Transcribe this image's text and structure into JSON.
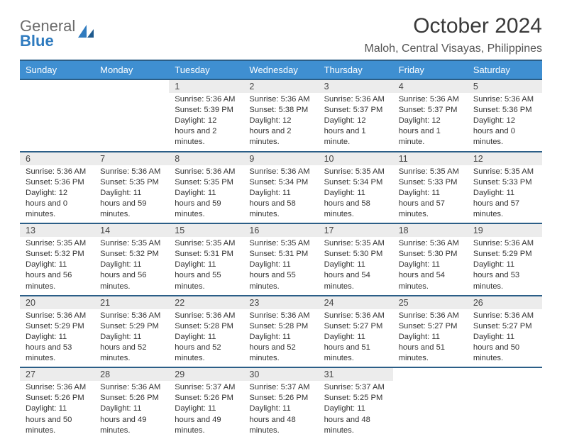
{
  "logo": {
    "word1": "General",
    "word2": "Blue"
  },
  "title": "October 2024",
  "location": "Maloh, Central Visayas, Philippines",
  "colors": {
    "header_bg": "#3f8fd1",
    "header_border": "#2b5e87",
    "daynum_bg": "#ececec",
    "logo_gray": "#6b6b6b",
    "logo_blue": "#2f7bbf"
  },
  "fonts": {
    "title_pt": 30,
    "location_pt": 16,
    "weekday_pt": 13,
    "daynum_pt": 12.5,
    "cell_pt": 11.2
  },
  "weekdays": [
    "Sunday",
    "Monday",
    "Tuesday",
    "Wednesday",
    "Thursday",
    "Friday",
    "Saturday"
  ],
  "weeks": [
    [
      null,
      null,
      {
        "n": "1",
        "sunrise": "5:36 AM",
        "sunset": "5:39 PM",
        "daylight": "12 hours and 2 minutes."
      },
      {
        "n": "2",
        "sunrise": "5:36 AM",
        "sunset": "5:38 PM",
        "daylight": "12 hours and 2 minutes."
      },
      {
        "n": "3",
        "sunrise": "5:36 AM",
        "sunset": "5:37 PM",
        "daylight": "12 hours and 1 minute."
      },
      {
        "n": "4",
        "sunrise": "5:36 AM",
        "sunset": "5:37 PM",
        "daylight": "12 hours and 1 minute."
      },
      {
        "n": "5",
        "sunrise": "5:36 AM",
        "sunset": "5:36 PM",
        "daylight": "12 hours and 0 minutes."
      }
    ],
    [
      {
        "n": "6",
        "sunrise": "5:36 AM",
        "sunset": "5:36 PM",
        "daylight": "12 hours and 0 minutes."
      },
      {
        "n": "7",
        "sunrise": "5:36 AM",
        "sunset": "5:35 PM",
        "daylight": "11 hours and 59 minutes."
      },
      {
        "n": "8",
        "sunrise": "5:36 AM",
        "sunset": "5:35 PM",
        "daylight": "11 hours and 59 minutes."
      },
      {
        "n": "9",
        "sunrise": "5:36 AM",
        "sunset": "5:34 PM",
        "daylight": "11 hours and 58 minutes."
      },
      {
        "n": "10",
        "sunrise": "5:35 AM",
        "sunset": "5:34 PM",
        "daylight": "11 hours and 58 minutes."
      },
      {
        "n": "11",
        "sunrise": "5:35 AM",
        "sunset": "5:33 PM",
        "daylight": "11 hours and 57 minutes."
      },
      {
        "n": "12",
        "sunrise": "5:35 AM",
        "sunset": "5:33 PM",
        "daylight": "11 hours and 57 minutes."
      }
    ],
    [
      {
        "n": "13",
        "sunrise": "5:35 AM",
        "sunset": "5:32 PM",
        "daylight": "11 hours and 56 minutes."
      },
      {
        "n": "14",
        "sunrise": "5:35 AM",
        "sunset": "5:32 PM",
        "daylight": "11 hours and 56 minutes."
      },
      {
        "n": "15",
        "sunrise": "5:35 AM",
        "sunset": "5:31 PM",
        "daylight": "11 hours and 55 minutes."
      },
      {
        "n": "16",
        "sunrise": "5:35 AM",
        "sunset": "5:31 PM",
        "daylight": "11 hours and 55 minutes."
      },
      {
        "n": "17",
        "sunrise": "5:35 AM",
        "sunset": "5:30 PM",
        "daylight": "11 hours and 54 minutes."
      },
      {
        "n": "18",
        "sunrise": "5:36 AM",
        "sunset": "5:30 PM",
        "daylight": "11 hours and 54 minutes."
      },
      {
        "n": "19",
        "sunrise": "5:36 AM",
        "sunset": "5:29 PM",
        "daylight": "11 hours and 53 minutes."
      }
    ],
    [
      {
        "n": "20",
        "sunrise": "5:36 AM",
        "sunset": "5:29 PM",
        "daylight": "11 hours and 53 minutes."
      },
      {
        "n": "21",
        "sunrise": "5:36 AM",
        "sunset": "5:29 PM",
        "daylight": "11 hours and 52 minutes."
      },
      {
        "n": "22",
        "sunrise": "5:36 AM",
        "sunset": "5:28 PM",
        "daylight": "11 hours and 52 minutes."
      },
      {
        "n": "23",
        "sunrise": "5:36 AM",
        "sunset": "5:28 PM",
        "daylight": "11 hours and 52 minutes."
      },
      {
        "n": "24",
        "sunrise": "5:36 AM",
        "sunset": "5:27 PM",
        "daylight": "11 hours and 51 minutes."
      },
      {
        "n": "25",
        "sunrise": "5:36 AM",
        "sunset": "5:27 PM",
        "daylight": "11 hours and 51 minutes."
      },
      {
        "n": "26",
        "sunrise": "5:36 AM",
        "sunset": "5:27 PM",
        "daylight": "11 hours and 50 minutes."
      }
    ],
    [
      {
        "n": "27",
        "sunrise": "5:36 AM",
        "sunset": "5:26 PM",
        "daylight": "11 hours and 50 minutes."
      },
      {
        "n": "28",
        "sunrise": "5:36 AM",
        "sunset": "5:26 PM",
        "daylight": "11 hours and 49 minutes."
      },
      {
        "n": "29",
        "sunrise": "5:37 AM",
        "sunset": "5:26 PM",
        "daylight": "11 hours and 49 minutes."
      },
      {
        "n": "30",
        "sunrise": "5:37 AM",
        "sunset": "5:26 PM",
        "daylight": "11 hours and 48 minutes."
      },
      {
        "n": "31",
        "sunrise": "5:37 AM",
        "sunset": "5:25 PM",
        "daylight": "11 hours and 48 minutes."
      },
      null,
      null
    ]
  ],
  "labels": {
    "sunrise": "Sunrise:",
    "sunset": "Sunset:",
    "daylight": "Daylight:"
  }
}
